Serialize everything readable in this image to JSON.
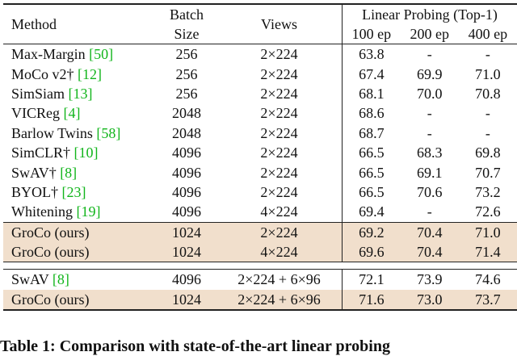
{
  "table": {
    "header": {
      "method": "Method",
      "batch_line1": "Batch",
      "batch_line2": "Size",
      "views": "Views",
      "linear_probing": "Linear Probing (Top-1)",
      "epochs": [
        "100 ep",
        "200 ep",
        "400 ep"
      ]
    },
    "group1": [
      {
        "name": "Max-Margin ",
        "cite": "[50]",
        "batch": "256",
        "views": "2×224",
        "e100": "63.8",
        "e200": "-",
        "e400": "-"
      },
      {
        "name": "MoCo v2† ",
        "cite": "[12]",
        "batch": "256",
        "views": "2×224",
        "e100": "67.4",
        "e200": "69.9",
        "e400": "71.0"
      },
      {
        "name": "SimSiam ",
        "cite": "[13]",
        "batch": "256",
        "views": "2×224",
        "e100": "68.1",
        "e200": "70.0",
        "e400": "70.8"
      },
      {
        "name": "VICReg ",
        "cite": "[4]",
        "batch": "2048",
        "views": "2×224",
        "e100": "68.6",
        "e200": "-",
        "e400": "-"
      },
      {
        "name": "Barlow Twins ",
        "cite": "[58]",
        "batch": "2048",
        "views": "2×224",
        "e100": "68.7",
        "e200": "-",
        "e400": "-"
      },
      {
        "name": "SimCLR† ",
        "cite": "[10]",
        "batch": "4096",
        "views": "2×224",
        "e100": "66.5",
        "e200": "68.3",
        "e400": "69.8"
      },
      {
        "name": "SwAV† ",
        "cite": "[8]",
        "batch": "4096",
        "views": "2×224",
        "e100": "66.5",
        "e200": "69.1",
        "e400": "70.7"
      },
      {
        "name": "BYOL† ",
        "cite": "[23]",
        "batch": "4096",
        "views": "2×224",
        "e100": "66.5",
        "e200": "70.6",
        "e400": "73.2"
      },
      {
        "name": "Whitening ",
        "cite": "[19]",
        "batch": "4096",
        "views": "4×224",
        "e100": "69.4",
        "e200": "-",
        "e400": "72.6"
      }
    ],
    "ours1": [
      {
        "name": "GroCo (ours)",
        "batch": "1024",
        "views": "2×224",
        "e100": "69.2",
        "e200": "70.4",
        "e400": "71.0"
      },
      {
        "name": "GroCo (ours)",
        "batch": "1024",
        "views": "4×224",
        "e100": "69.6",
        "e200": "70.4",
        "e400": "71.4"
      }
    ],
    "group2": [
      {
        "name": "SwAV ",
        "cite": "[8]",
        "batch": "4096",
        "views": "2×224 + 6×96",
        "e100": "72.1",
        "e200": "73.9",
        "e400": "74.6"
      }
    ],
    "ours2": [
      {
        "name": "GroCo (ours)",
        "batch": "1024",
        "views": "2×224 + 6×96",
        "e100": "71.6",
        "e200": "73.0",
        "e400": "73.7"
      }
    ]
  },
  "caption": "Table 1: Comparison with state-of-the-art linear probing"
}
